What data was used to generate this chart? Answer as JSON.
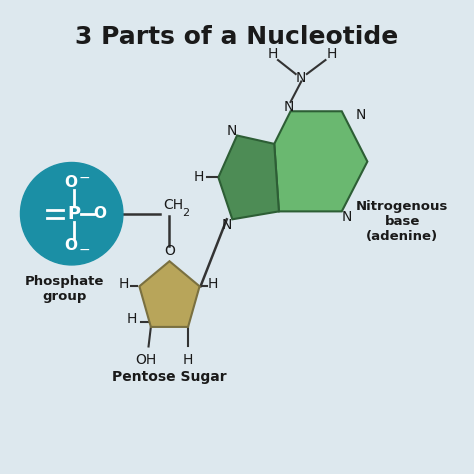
{
  "title": "3 Parts of a Nucleotide",
  "bg_color": "#dde8ee",
  "title_fontsize": 18,
  "title_color": "#1a1a1a",
  "phosphate_circle_color": "#1b8fa5",
  "phosphate_label": "Phosphate\ngroup",
  "sugar_color": "#b8a55a",
  "sugar_label": "Pentose Sugar",
  "base_color_dark": "#4d8c55",
  "base_color_light": "#6ab870",
  "base_label": "Nitrogenous\nbase\n(adenine)",
  "line_color": "#333333",
  "white": "#ffffff",
  "text_color": "#1a1a1a"
}
